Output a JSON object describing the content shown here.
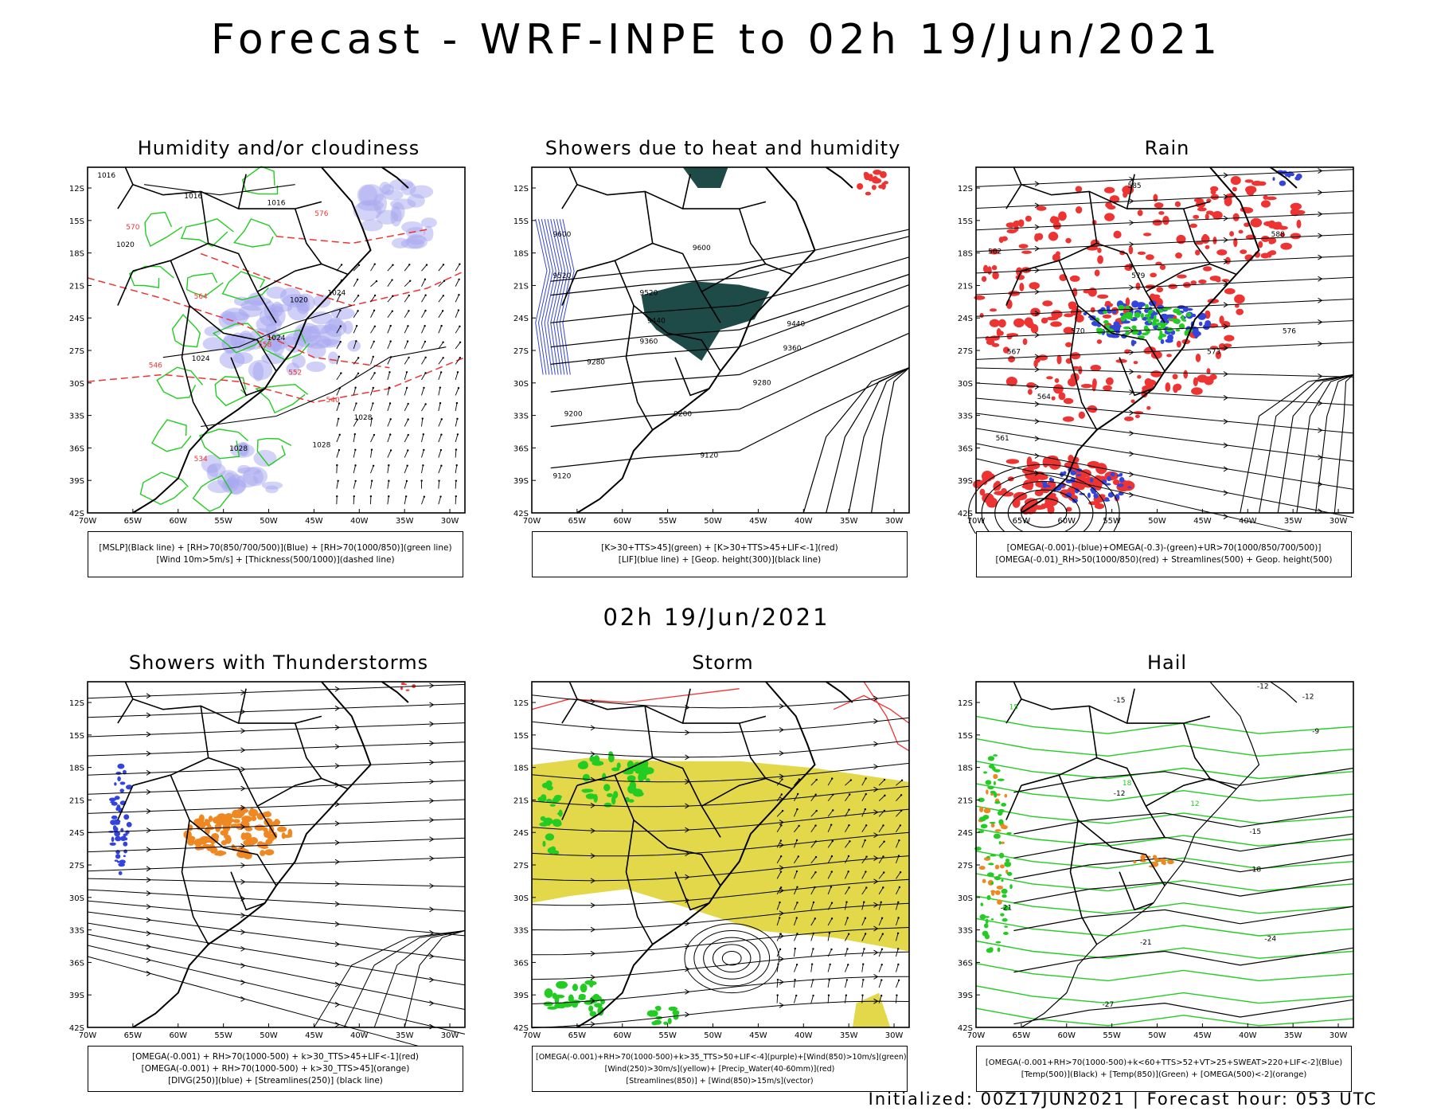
{
  "title": "Forecast - WRF-INPE to 02h 19/Jun/2021",
  "mid_title": "02h 19/Jun/2021",
  "footer": "Initialized: 00Z17JUN2021 | Forecast hour: 053 UTC",
  "axes": {
    "lat_labels": [
      "12S",
      "15S",
      "18S",
      "21S",
      "24S",
      "27S",
      "30S",
      "33S",
      "36S",
      "39S",
      "42S"
    ],
    "lon_labels": [
      "70W",
      "65W",
      "60W",
      "55W",
      "50W",
      "45W",
      "40W",
      "35W",
      "30W"
    ]
  },
  "colors": {
    "green": "#22cc22",
    "blue": "#3344dd",
    "red": "#ee3333",
    "orange": "#ee8822",
    "teal": "#1e4a48",
    "yellow": "#e2d84a",
    "lavender": "#a8a8f0"
  },
  "panels": [
    {
      "title": "Humidity and/or cloudiness",
      "legend": [
        "[MSLP](Black line) + [RH>70(850/700/500)](Blue) + [RH>70(1000/850)](green line)",
        "[Wind 10m>5m/s] + [Thickness(500/1000)](dashed line)"
      ],
      "contour_labels": [
        "1016",
        "1016",
        "1016",
        "1020",
        "1020",
        "1024",
        "1024",
        "1024",
        "1028",
        "1028",
        "1028",
        "564",
        "558",
        "552",
        "546",
        "540",
        "534",
        "570",
        "576"
      ]
    },
    {
      "title": "Showers due to heat and humidity",
      "legend": [
        "[K>30+TTS>45](green) + [K>30+TTS>45+LIF<-1](red)",
        "[LIF](blue line) + [Geop. height(300)](black line)"
      ],
      "contour_labels": [
        "9600",
        "9600",
        "9520",
        "9520",
        "9440",
        "9440",
        "9360",
        "9360",
        "9280",
        "9280",
        "9200",
        "9200",
        "9120",
        "9120"
      ]
    },
    {
      "title": "Rain",
      "legend": [
        "[OMEGA(-0.001)-(blue)+OMEGA(-0.3)-(green)+UR>70(1000/850/700/500)]",
        "[OMEGA(-0.01)_RH>50(1000/850)(red) + Streamlines(500) + Geop. height(500)"
      ],
      "contour_labels": [
        "585",
        "582",
        "579",
        "576",
        "573",
        "570",
        "567",
        "564",
        "561",
        "588"
      ]
    },
    {
      "title": "Showers with Thunderstorms",
      "legend": [
        "[OMEGA(-0.001) + RH>70(1000-500) + k>30_TTS>45+LIF<-1](red)",
        "[OMEGA(-0.001) + RH>70(1000-500) + k>30_TTS>45](orange)",
        "[DIVG(250)](blue) + [Streamlines(250)] (black line)"
      ],
      "contour_labels": []
    },
    {
      "title": "Storm",
      "legend": [
        "[OMEGA(-0.001)+RH>70(1000-500)+k>35_TTS>50+LIF<-4](purple)+[Wind(850)>10m/s](green)",
        "[Wind(250)>30m/s](yellow)+ [Precip_Water(40-60mm)](red)",
        "[Streamlines(850)] + [Wind(850)>15m/s](vector)"
      ],
      "contour_labels": []
    },
    {
      "title": "Hail",
      "legend": [
        "[OMEGA(-0.001+RH>70(1000-500)+k<60+TTS>52+VT>25+SWEAT>220+LIF<-2](Blue)",
        "[Temp(500)](Black) + [Temp(850)](Green) + [OMEGA(500)<-2](orange)"
      ],
      "contour_labels": [
        "-15",
        "-12",
        "-12",
        "-9",
        "-12",
        "-15",
        "-18",
        "-21",
        "-21",
        "-24",
        "-27",
        "15",
        "18",
        "12"
      ]
    }
  ]
}
